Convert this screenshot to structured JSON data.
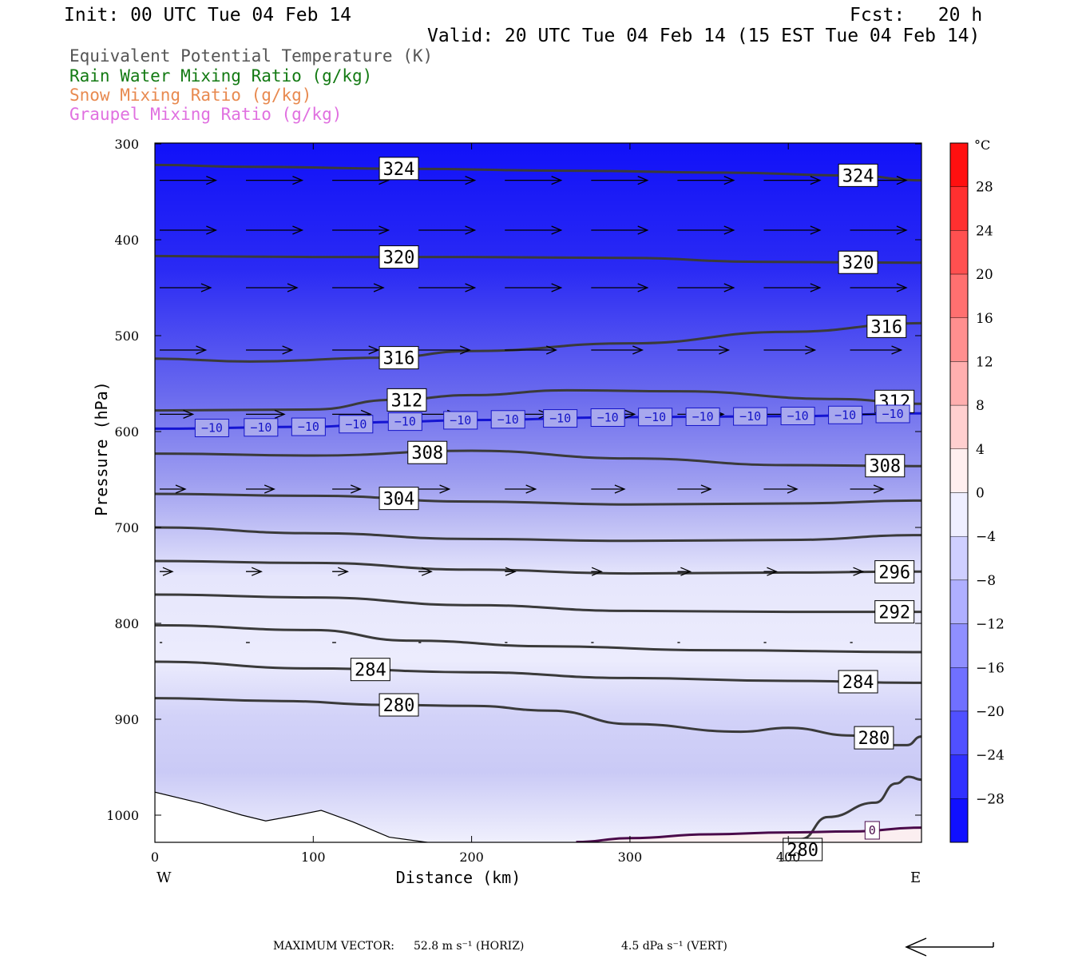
{
  "header": {
    "init": "Init: 00 UTC Tue 04 Feb 14",
    "fcst": "Fcst:   20 h",
    "valid": "Valid: 20 UTC Tue 04 Feb 14 (15 EST Tue 04 Feb 14)"
  },
  "legend": [
    {
      "label": "Equivalent Potential Temperature (K)",
      "color": "#555555"
    },
    {
      "label": "Rain Water Mixing Ratio (g/kg)",
      "color": "#137a13"
    },
    {
      "label": "Snow Mixing Ratio (g/kg)",
      "color": "#e88a50"
    },
    {
      "label": "Graupel Mixing Ratio (g/kg)",
      "color": "#e070e0"
    }
  ],
  "chart_data": {
    "type": "cross-section",
    "xlabel": "Distance (km)",
    "ylabel": "Pressure (hPa)",
    "x_ticks": [
      0,
      100,
      200,
      300,
      400
    ],
    "xlim": [
      0,
      484
    ],
    "y_ticks": [
      300,
      400,
      500,
      600,
      700,
      800,
      900,
      1000
    ],
    "ylim": [
      300,
      1030
    ],
    "y_scale": "linear, pressure increasing downward",
    "left_end_label": "W",
    "right_end_label": "E",
    "colorbar": {
      "unit": "°C",
      "tick_labels": [
        "28",
        "24",
        "20",
        "16",
        "12",
        "8",
        "4",
        "0",
        "−4",
        "−8",
        "−12",
        "−16",
        "−20",
        "−24",
        "−28"
      ],
      "range": [
        -32,
        32
      ],
      "step": 4
    },
    "theta_e_contours": [
      {
        "value": 324,
        "points": [
          [
            0,
            322
          ],
          [
            60,
            324
          ],
          [
            160,
            326
          ],
          [
            260,
            328
          ],
          [
            360,
            330
          ],
          [
            440,
            333
          ],
          [
            484,
            338
          ]
        ],
        "labels": [
          {
            "x": 145,
            "text": "324"
          },
          {
            "x": 435,
            "text": "324"
          }
        ]
      },
      {
        "value": 320,
        "points": [
          [
            0,
            417
          ],
          [
            100,
            418
          ],
          [
            200,
            418
          ],
          [
            300,
            419
          ],
          [
            380,
            423
          ],
          [
            484,
            424
          ]
        ],
        "labels": [
          {
            "x": 145,
            "text": "320"
          },
          {
            "x": 435,
            "text": "320"
          }
        ]
      },
      {
        "value": 316,
        "points": [
          [
            0,
            524
          ],
          [
            60,
            527
          ],
          [
            145,
            523
          ],
          [
            200,
            516
          ],
          [
            300,
            508
          ],
          [
            400,
            496
          ],
          [
            484,
            487
          ]
        ],
        "labels": [
          {
            "x": 145,
            "text": "316"
          },
          {
            "x": 453,
            "text": "316"
          }
        ]
      },
      {
        "value": 312,
        "points": [
          [
            0,
            578
          ],
          [
            100,
            577
          ],
          [
            150,
            567
          ],
          [
            200,
            562
          ],
          [
            260,
            557
          ],
          [
            330,
            558
          ],
          [
            430,
            566
          ],
          [
            484,
            571
          ]
        ],
        "labels": [
          {
            "x": 150,
            "text": "312"
          },
          {
            "x": 458,
            "text": "312"
          }
        ]
      },
      {
        "value": 308,
        "points": [
          [
            0,
            623
          ],
          [
            100,
            625
          ],
          [
            200,
            620
          ],
          [
            300,
            628
          ],
          [
            400,
            635
          ],
          [
            484,
            636
          ]
        ],
        "labels": [
          {
            "x": 163,
            "text": "308"
          },
          {
            "x": 452,
            "text": "308"
          }
        ]
      },
      {
        "value": 304,
        "points": [
          [
            0,
            665
          ],
          [
            100,
            667
          ],
          [
            200,
            673
          ],
          [
            300,
            676
          ],
          [
            400,
            675
          ],
          [
            484,
            672
          ]
        ],
        "labels": [
          {
            "x": 145,
            "text": "304"
          }
        ]
      },
      {
        "value": 300,
        "points": [
          [
            0,
            700
          ],
          [
            100,
            706
          ],
          [
            200,
            712
          ],
          [
            300,
            714
          ],
          [
            400,
            713
          ],
          [
            484,
            708
          ]
        ],
        "labels": []
      },
      {
        "value": 296,
        "points": [
          [
            0,
            735
          ],
          [
            100,
            737
          ],
          [
            200,
            744
          ],
          [
            300,
            748
          ],
          [
            400,
            747
          ],
          [
            484,
            746
          ]
        ],
        "labels": [
          {
            "x": 458,
            "text": "296"
          }
        ]
      },
      {
        "value": 292,
        "points": [
          [
            0,
            770
          ],
          [
            100,
            773
          ],
          [
            200,
            781
          ],
          [
            300,
            787
          ],
          [
            400,
            788
          ],
          [
            484,
            788
          ]
        ],
        "labels": [
          {
            "x": 458,
            "text": "292"
          }
        ]
      },
      {
        "value": 288,
        "points": [
          [
            0,
            802
          ],
          [
            100,
            807
          ],
          [
            160,
            818
          ],
          [
            250,
            824
          ],
          [
            350,
            828
          ],
          [
            484,
            830
          ]
        ],
        "labels": []
      },
      {
        "value": 284,
        "points": [
          [
            0,
            840
          ],
          [
            100,
            847
          ],
          [
            200,
            851
          ],
          [
            300,
            857
          ],
          [
            400,
            860
          ],
          [
            484,
            862
          ]
        ],
        "labels": [
          {
            "x": 127,
            "text": "284"
          },
          {
            "x": 435,
            "text": "284"
          }
        ]
      },
      {
        "value": 280,
        "points": [
          [
            0,
            878
          ],
          [
            80,
            881
          ],
          [
            145,
            885
          ],
          [
            200,
            886
          ],
          [
            250,
            891
          ],
          [
            300,
            905
          ],
          [
            370,
            913
          ],
          [
            400,
            909
          ],
          [
            440,
            917
          ],
          [
            462,
            927
          ],
          [
            475,
            927
          ],
          [
            484,
            918
          ]
        ],
        "labels": [
          {
            "x": 145,
            "text": "280"
          },
          {
            "x": 445,
            "text": "280"
          }
        ]
      },
      {
        "value": 280,
        "points": [
          [
            408,
            1025
          ],
          [
            425,
            1002
          ],
          [
            455,
            987
          ],
          [
            468,
            967
          ],
          [
            476,
            960
          ],
          [
            484,
            963
          ]
        ],
        "labels": [
          {
            "x": 400,
            "text": "280"
          }
        ]
      }
    ],
    "temperature_contours": [
      {
        "value": -10,
        "points": [
          [
            0,
            597
          ],
          [
            100,
            595
          ],
          [
            150,
            590
          ],
          [
            200,
            588
          ],
          [
            300,
            585
          ],
          [
            400,
            584
          ],
          [
            484,
            581
          ]
        ],
        "labels": [
          {
            "x": 36,
            "text": "−10"
          },
          {
            "x": 67,
            "text": "−10"
          },
          {
            "x": 97,
            "text": "−10"
          },
          {
            "x": 127,
            "text": "−10"
          },
          {
            "x": 158,
            "text": "−10"
          },
          {
            "x": 193,
            "text": "−10"
          },
          {
            "x": 223,
            "text": "−10"
          },
          {
            "x": 256,
            "text": "−10"
          },
          {
            "x": 286,
            "text": "−10"
          },
          {
            "x": 316,
            "text": "−10"
          },
          {
            "x": 346,
            "text": "−10"
          },
          {
            "x": 376,
            "text": "−10"
          },
          {
            "x": 406,
            "text": "−10"
          },
          {
            "x": 436,
            "text": "−10"
          },
          {
            "x": 466,
            "text": "−10"
          }
        ]
      },
      {
        "value": 0,
        "points": [
          [
            266,
            1028
          ],
          [
            300,
            1024
          ],
          [
            350,
            1020
          ],
          [
            400,
            1018
          ],
          [
            440,
            1017
          ],
          [
            484,
            1013
          ]
        ],
        "labels": [
          {
            "x": 453,
            "text": "0"
          }
        ]
      }
    ],
    "terrain": {
      "points": [
        [
          0,
          976
        ],
        [
          30,
          988
        ],
        [
          55,
          1000
        ],
        [
          70,
          1006
        ],
        [
          90,
          1000
        ],
        [
          105,
          995
        ],
        [
          125,
          1007
        ],
        [
          148,
          1023
        ],
        [
          175,
          1029
        ],
        [
          220,
          1030
        ],
        [
          300,
          1030
        ],
        [
          484,
          1030
        ]
      ]
    },
    "wind_vectors": [
      {
        "p": 338,
        "x0": 3,
        "step": 54.5,
        "u": [
          44,
          44,
          44,
          44,
          44,
          44,
          44,
          44,
          44,
          44,
          44,
          44,
          44,
          44,
          44,
          44,
          44
        ]
      },
      {
        "p": 390,
        "x0": 3,
        "step": 54.5,
        "u": [
          44,
          44,
          44,
          44,
          44,
          44,
          44,
          44,
          44,
          44,
          44,
          44,
          44,
          44,
          44,
          44,
          44
        ]
      },
      {
        "p": 450,
        "x0": 3,
        "step": 54.5,
        "u": [
          40,
          40,
          40,
          44,
          44,
          44,
          44,
          44,
          44,
          44,
          44,
          44,
          44,
          44,
          44,
          44,
          44
        ]
      },
      {
        "p": 515,
        "x0": 3,
        "step": 54.5,
        "u": [
          36,
          36,
          36,
          40,
          40,
          40,
          40,
          40,
          40,
          40,
          40,
          40,
          40,
          40,
          40,
          40,
          40
        ]
      },
      {
        "p": 582,
        "x0": 3,
        "step": 54.5,
        "u": [
          26,
          30,
          30,
          30,
          34,
          34,
          36,
          36,
          36,
          36,
          36,
          36,
          36,
          36,
          36,
          36,
          36
        ]
      },
      {
        "p": 660,
        "x0": 3,
        "step": 54.5,
        "u": [
          20,
          22,
          22,
          24,
          24,
          26,
          26,
          26,
          26,
          26,
          26,
          26,
          26,
          26,
          26,
          26,
          26
        ]
      },
      {
        "p": 746,
        "x0": 3,
        "step": 54.5,
        "u": [
          10,
          12,
          12,
          10,
          8,
          8,
          10,
          10,
          10,
          10,
          10,
          10,
          10,
          10,
          10,
          10,
          10
        ]
      },
      {
        "p": 820,
        "x0": 3,
        "step": 54.5,
        "u": [
          2,
          3,
          3,
          2,
          2,
          2,
          2,
          2,
          2,
          2,
          2,
          2,
          2,
          2,
          2,
          2,
          2
        ]
      }
    ]
  },
  "footer": {
    "max_vector_label": "MAXIMUM VECTOR:",
    "horiz": "52.8 m s⁻¹ (HORIZ)",
    "vert": "4.5 dPa s⁻¹ (VERT)"
  }
}
